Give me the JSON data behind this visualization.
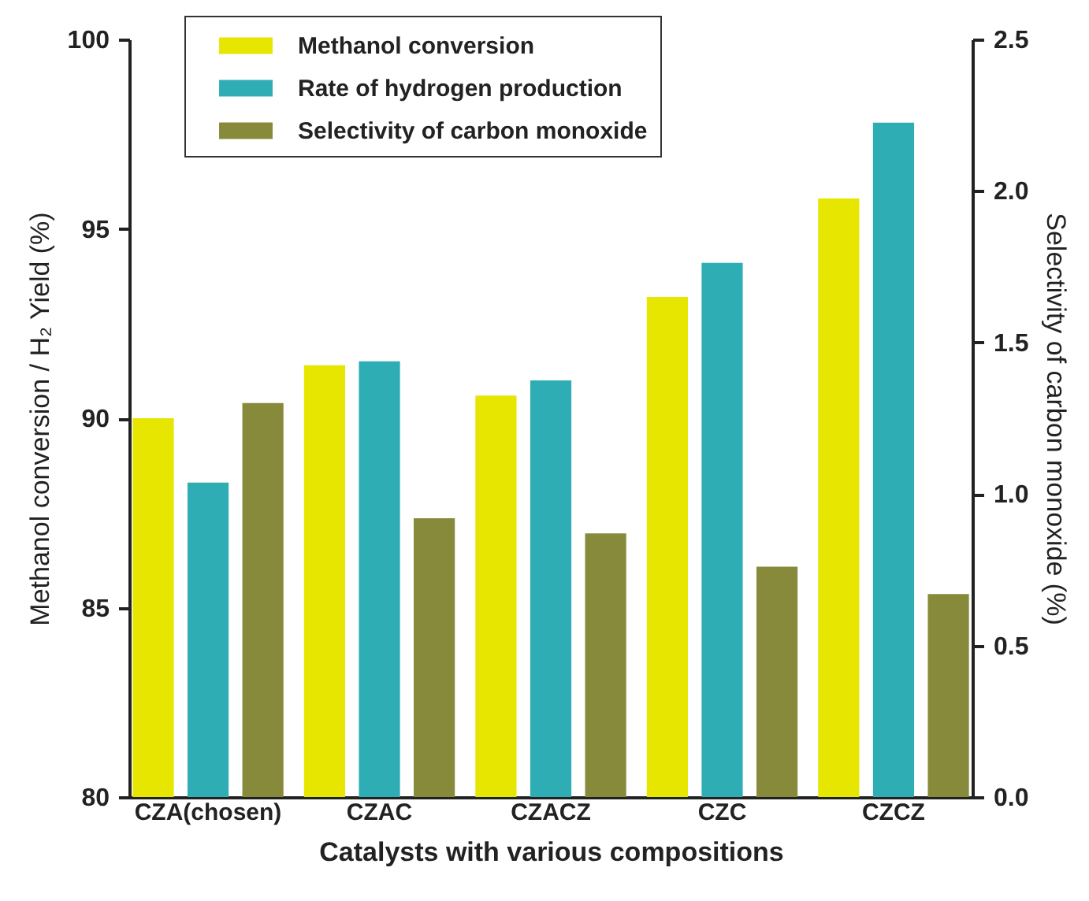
{
  "chart_data": {
    "type": "bar",
    "xlabel": "Catalysts with various compositions",
    "ylabel": "Methanol conversion / H₂ Yield (%)",
    "y2label": "Selectivity of carbon monoxide (%)",
    "categories": [
      "CZA(chosen)",
      "CZAC",
      "CZACZ",
      "CZC",
      "CZCZ"
    ],
    "series": [
      {
        "name": "Methanol conversion",
        "color": "#e6e600",
        "values": [
          90.0,
          91.4,
          90.6,
          93.2,
          95.8
        ]
      },
      {
        "name": "Rate of hydrogen production",
        "color": "#2eadb5",
        "values": [
          88.3,
          91.5,
          91.0,
          94.1,
          97.8
        ]
      },
      {
        "name": "Selectivity of carbon monoxide",
        "color": "#878a3a",
        "axis": "y2",
        "values": [
          1.3,
          0.92,
          0.87,
          0.76,
          0.67
        ]
      }
    ],
    "ylim": [
      80,
      100
    ],
    "yticks": [
      80,
      85,
      90,
      95,
      100
    ],
    "y2lim": [
      0,
      2.5
    ],
    "y2ticks": [
      {
        "value": 0,
        "label": "0.0"
      },
      {
        "value": 0.5,
        "label": "0.5"
      },
      {
        "value": 1,
        "label": "1.0"
      },
      {
        "value": 1.5,
        "label": "1.5"
      },
      {
        "value": 2,
        "label": "2.0"
      },
      {
        "value": 2.5,
        "label": "2.5"
      }
    ],
    "legend": "top"
  }
}
